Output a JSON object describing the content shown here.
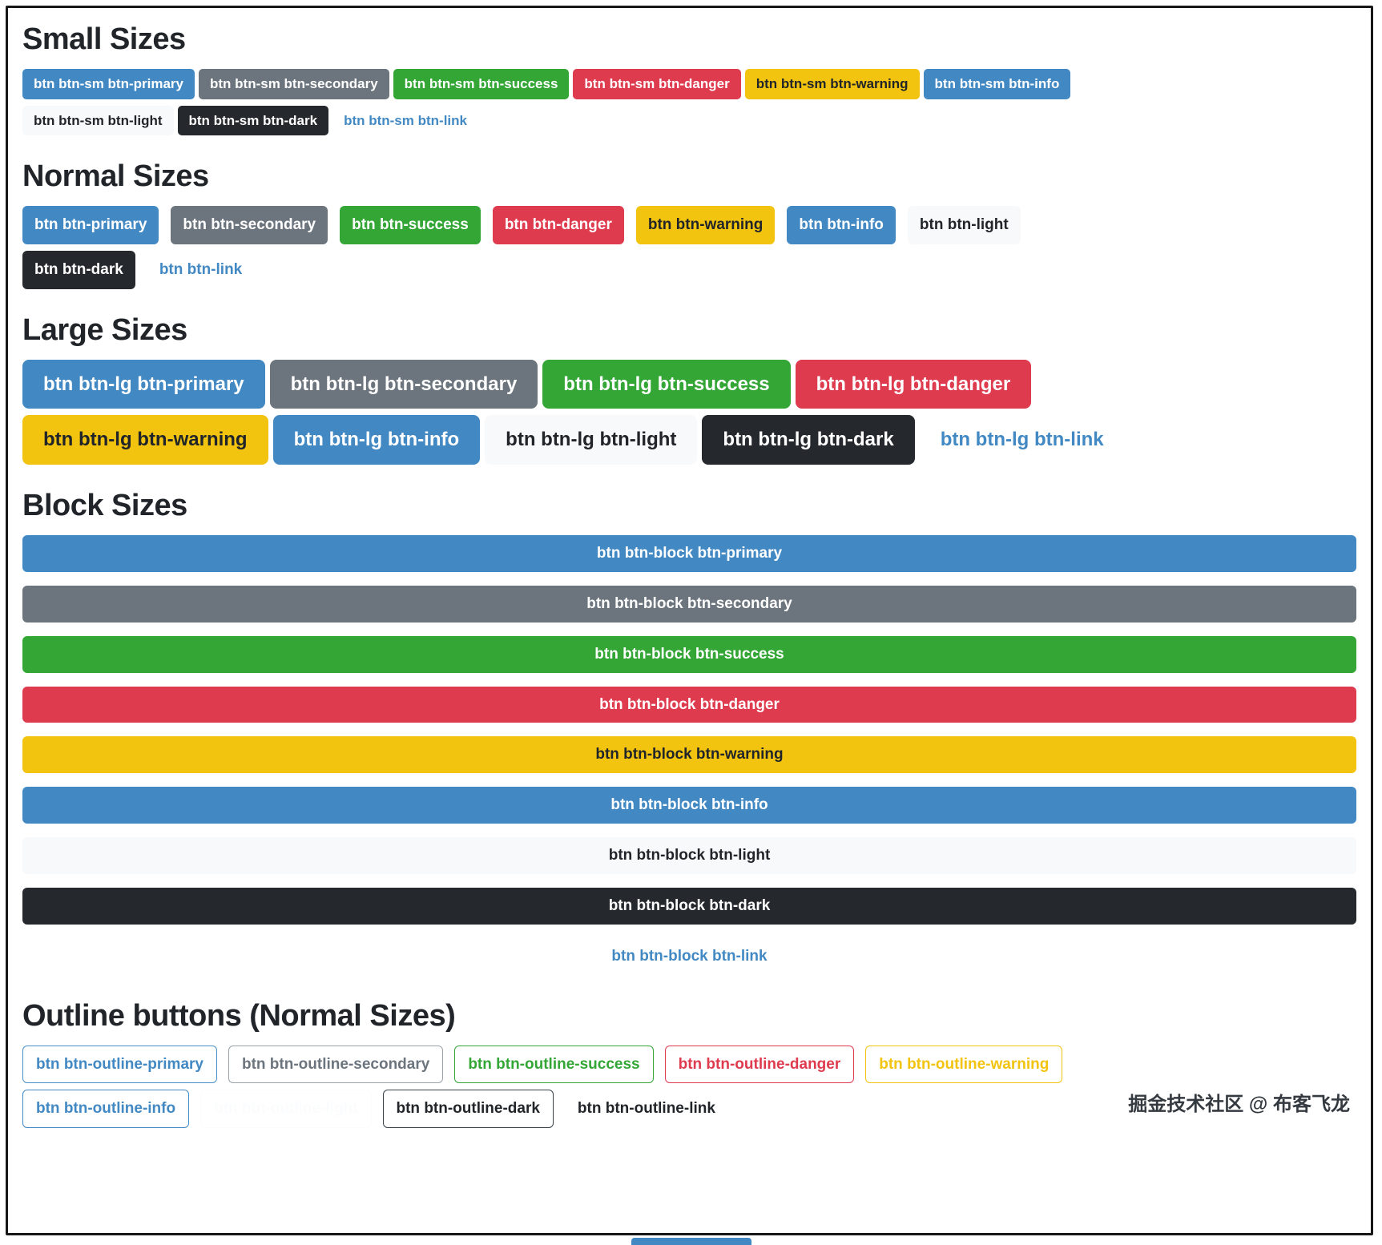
{
  "watermark": "掘金技术社区 @ 布客飞龙",
  "colors": {
    "primary": "#4289c4",
    "secondary": "#6c757d",
    "success": "#33a636",
    "danger": "#df3b4e",
    "warning": "#f2c40f",
    "info": "#4289c4",
    "light": "#f8f9fa",
    "dark": "#25292e",
    "link_text": "#4289c4",
    "frame_border": "#171717"
  },
  "sections": [
    {
      "title": "Small Sizes",
      "buttons": [
        {
          "label": "btn btn-sm btn-primary",
          "variant": "primary"
        },
        {
          "label": "btn btn-sm btn-secondary",
          "variant": "secondary"
        },
        {
          "label": "btn btn-sm btn-success",
          "variant": "success"
        },
        {
          "label": "btn btn-sm btn-danger",
          "variant": "danger"
        },
        {
          "label": "btn btn-sm btn-warning",
          "variant": "warning"
        },
        {
          "label": "btn btn-sm btn-info",
          "variant": "info"
        },
        {
          "label": "btn btn-sm btn-light",
          "variant": "light"
        },
        {
          "label": "btn btn-sm btn-dark",
          "variant": "dark"
        },
        {
          "label": "btn btn-sm btn-link",
          "variant": "link"
        }
      ]
    },
    {
      "title": "Normal Sizes",
      "buttons": [
        {
          "label": "btn btn-primary",
          "variant": "primary"
        },
        {
          "label": "btn btn-secondary",
          "variant": "secondary"
        },
        {
          "label": "btn btn-success",
          "variant": "success"
        },
        {
          "label": "btn btn-danger",
          "variant": "danger"
        },
        {
          "label": "btn btn-warning",
          "variant": "warning"
        },
        {
          "label": "btn btn-info",
          "variant": "info"
        },
        {
          "label": "btn btn-light",
          "variant": "light"
        },
        {
          "label": "btn btn-dark",
          "variant": "dark"
        },
        {
          "label": "btn btn-link",
          "variant": "link"
        }
      ]
    },
    {
      "title": "Large Sizes",
      "buttons": [
        {
          "label": "btn btn-lg btn-primary",
          "variant": "primary"
        },
        {
          "label": "btn btn-lg btn-secondary",
          "variant": "secondary"
        },
        {
          "label": "btn btn-lg btn-success",
          "variant": "success"
        },
        {
          "label": "btn btn-lg btn-danger",
          "variant": "danger"
        },
        {
          "label": "btn btn-lg btn-warning",
          "variant": "warning"
        },
        {
          "label": "btn btn-lg btn-info",
          "variant": "info"
        },
        {
          "label": "btn btn-lg btn-light",
          "variant": "light"
        },
        {
          "label": "btn btn-lg btn-dark",
          "variant": "dark"
        },
        {
          "label": "btn btn-lg btn-link",
          "variant": "link"
        }
      ]
    },
    {
      "title": "Block Sizes",
      "buttons": [
        {
          "label": "btn btn-block btn-primary",
          "variant": "primary"
        },
        {
          "label": "btn btn-block btn-secondary",
          "variant": "secondary"
        },
        {
          "label": "btn btn-block btn-success",
          "variant": "success"
        },
        {
          "label": "btn btn-block btn-danger",
          "variant": "danger"
        },
        {
          "label": "btn btn-block btn-warning",
          "variant": "warning"
        },
        {
          "label": "btn btn-block btn-info",
          "variant": "info"
        },
        {
          "label": "btn btn-block btn-light",
          "variant": "light"
        },
        {
          "label": "btn btn-block btn-dark",
          "variant": "dark"
        },
        {
          "label": "btn btn-block btn-link",
          "variant": "link"
        }
      ]
    },
    {
      "title": "Outline buttons (Normal Sizes)",
      "buttons": [
        {
          "label": "btn btn-outline-primary",
          "variant": "outline-primary"
        },
        {
          "label": "btn btn-outline-secondary",
          "variant": "outline-secondary"
        },
        {
          "label": "btn btn-outline-success",
          "variant": "outline-success"
        },
        {
          "label": "btn btn-outline-danger",
          "variant": "outline-danger"
        },
        {
          "label": "btn btn-outline-warning",
          "variant": "outline-warning"
        },
        {
          "label": "btn btn-outline-info",
          "variant": "outline-info"
        },
        {
          "label": "btn btn-outline-light",
          "variant": "outline-light"
        },
        {
          "label": "btn btn-outline-dark",
          "variant": "outline-dark"
        },
        {
          "label": "btn btn-outline-link",
          "variant": "outline-link"
        }
      ]
    }
  ]
}
